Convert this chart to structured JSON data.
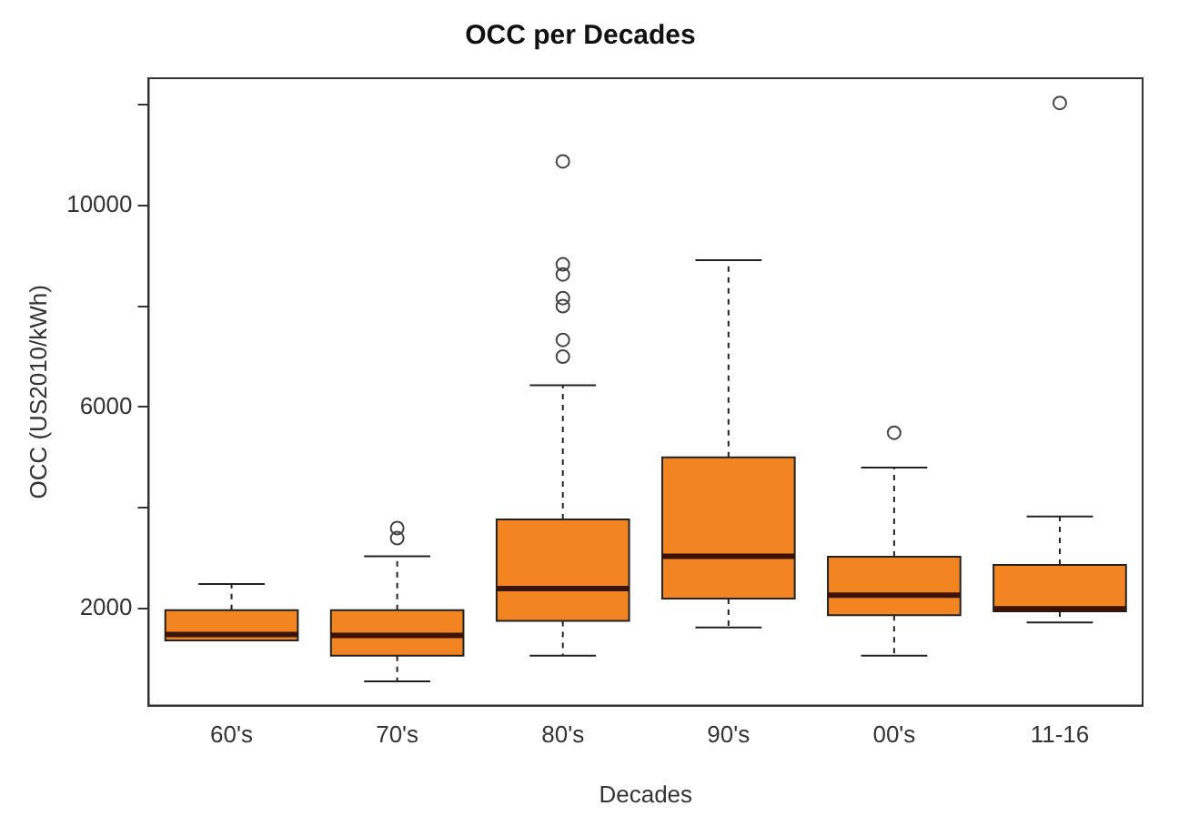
{
  "chart_data": {
    "type": "box",
    "title": "OCC per Decades",
    "xlabel": "Decades",
    "ylabel": "OCC (US2010/kWh)",
    "categories": [
      "60's",
      "70's",
      "80's",
      "90's",
      "00's",
      "11-16"
    ],
    "color": "#f28522",
    "boxes": [
      {
        "low": 1370,
        "q1": 1370,
        "median": 1490,
        "q3": 1970,
        "high": 2490
      },
      {
        "low": 560,
        "q1": 1070,
        "median": 1470,
        "q3": 1970,
        "high": 3040,
        "outliers": [
          3400,
          3600
        ]
      },
      {
        "low": 1070,
        "q1": 1760,
        "median": 2400,
        "q3": 3770,
        "high": 6430,
        "outliers": [
          7000,
          7330,
          8000,
          8160,
          8630,
          8830,
          10870
        ]
      },
      {
        "low": 1630,
        "q1": 2200,
        "median": 3040,
        "q3": 5000,
        "high": 8910
      },
      {
        "low": 1070,
        "q1": 1870,
        "median": 2270,
        "q3": 3030,
        "high": 4800,
        "outliers": [
          5490
        ]
      },
      {
        "low": 1730,
        "q1": 1950,
        "median": 2000,
        "q3": 2870,
        "high": 3830,
        "outliers": [
          12030
        ]
      }
    ],
    "ylim": [
      80,
      12520
    ],
    "yticks": [
      2000,
      {
        "value": 4000,
        "label": null
      },
      6000,
      {
        "value": 8000,
        "label": null
      },
      10000,
      {
        "value": 12000,
        "label": null
      }
    ],
    "grid": false,
    "legend": false
  }
}
